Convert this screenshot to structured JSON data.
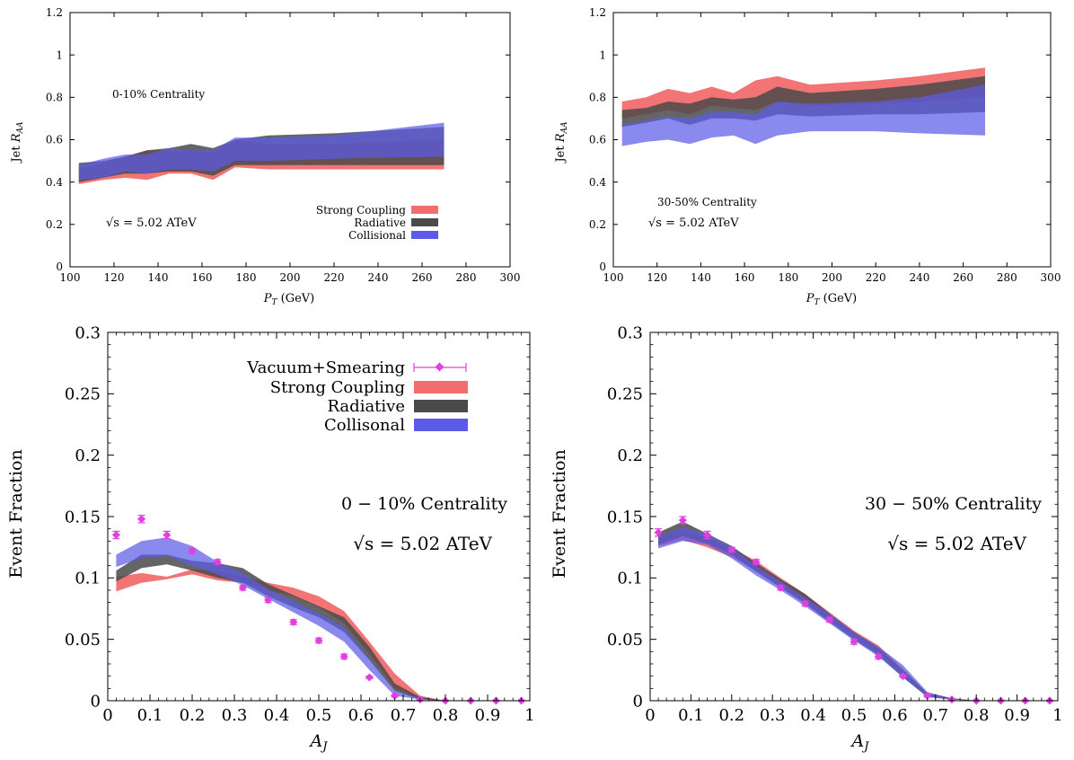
{
  "colors": {
    "strong": "#f26d6d",
    "radiative": "#4a4a4a",
    "collisional": "#5b5be8",
    "vacuum": "#e040e0"
  },
  "chart_data": [
    {
      "id": "raa_central",
      "type": "area",
      "xlabel": "P_T (GeV)",
      "ylabel": "Jet R_AA",
      "xlim": [
        100,
        300
      ],
      "ylim": [
        0,
        1.2
      ],
      "xticks": [
        "100",
        "120",
        "140",
        "160",
        "180",
        "200",
        "220",
        "240",
        "260",
        "280",
        "300"
      ],
      "yticks": [
        "0",
        "0.2",
        "0.4",
        "0.6",
        "0.8",
        "1",
        "1.2"
      ],
      "annotations": [
        "0-10% Centrality",
        "√s = 5.02 ATeV"
      ],
      "legend": [
        "Strong Coupling",
        "Radiative",
        "Collisional"
      ],
      "legend_position": "bottom-right",
      "x": [
        104,
        115,
        125,
        135,
        145,
        155,
        165,
        175,
        190,
        220,
        270
      ],
      "series": [
        {
          "name": "Strong Coupling",
          "lower": [
            0.39,
            0.41,
            0.42,
            0.41,
            0.44,
            0.44,
            0.41,
            0.47,
            0.46,
            0.46,
            0.46
          ],
          "upper": [
            0.46,
            0.49,
            0.52,
            0.55,
            0.55,
            0.55,
            0.54,
            0.6,
            0.58,
            0.58,
            0.6
          ]
        },
        {
          "name": "Radiative",
          "lower": [
            0.4,
            0.42,
            0.44,
            0.44,
            0.45,
            0.45,
            0.43,
            0.48,
            0.48,
            0.48,
            0.48
          ],
          "upper": [
            0.49,
            0.5,
            0.52,
            0.55,
            0.56,
            0.58,
            0.56,
            0.6,
            0.62,
            0.63,
            0.66
          ]
        },
        {
          "name": "Collisional",
          "lower": [
            0.41,
            0.42,
            0.45,
            0.44,
            0.46,
            0.46,
            0.45,
            0.5,
            0.5,
            0.51,
            0.52
          ],
          "upper": [
            0.48,
            0.51,
            0.53,
            0.53,
            0.56,
            0.55,
            0.55,
            0.61,
            0.61,
            0.62,
            0.68
          ]
        }
      ]
    },
    {
      "id": "raa_peripheral",
      "type": "area",
      "xlabel": "P_T (GeV)",
      "ylabel": "Jet R_AA",
      "xlim": [
        100,
        300
      ],
      "ylim": [
        0,
        1.2
      ],
      "xticks": [
        "100",
        "120",
        "140",
        "160",
        "180",
        "200",
        "220",
        "240",
        "260",
        "280",
        "300"
      ],
      "yticks": [
        "0",
        "0.2",
        "0.4",
        "0.6",
        "0.8",
        "1",
        "1.2"
      ],
      "annotations": [
        "30-50% Centrality",
        "√s = 5.02 ATeV"
      ],
      "x": [
        104,
        115,
        125,
        135,
        145,
        155,
        165,
        175,
        190,
        220,
        240,
        270
      ],
      "series": [
        {
          "name": "Strong Coupling",
          "lower": [
            0.7,
            0.72,
            0.74,
            0.72,
            0.76,
            0.75,
            0.74,
            0.78,
            0.76,
            0.77,
            0.78,
            0.8
          ],
          "upper": [
            0.78,
            0.8,
            0.84,
            0.82,
            0.85,
            0.82,
            0.88,
            0.9,
            0.86,
            0.88,
            0.9,
            0.94
          ]
        },
        {
          "name": "Radiative",
          "lower": [
            0.66,
            0.68,
            0.7,
            0.67,
            0.7,
            0.7,
            0.69,
            0.72,
            0.71,
            0.72,
            0.72,
            0.73
          ],
          "upper": [
            0.74,
            0.75,
            0.78,
            0.77,
            0.8,
            0.79,
            0.8,
            0.85,
            0.82,
            0.84,
            0.86,
            0.9
          ]
        },
        {
          "name": "Collisional",
          "lower": [
            0.57,
            0.59,
            0.6,
            0.58,
            0.61,
            0.62,
            0.58,
            0.62,
            0.64,
            0.64,
            0.63,
            0.62
          ],
          "upper": [
            0.67,
            0.69,
            0.71,
            0.7,
            0.73,
            0.73,
            0.72,
            0.78,
            0.77,
            0.78,
            0.8,
            0.86
          ]
        }
      ]
    },
    {
      "id": "aj_central",
      "type": "area",
      "xlabel": "A_J",
      "ylabel": "Event Fraction",
      "xlim": [
        0,
        1
      ],
      "ylim": [
        0,
        0.3
      ],
      "xticks": [
        "0",
        "0.1",
        "0.2",
        "0.3",
        "0.4",
        "0.5",
        "0.6",
        "0.7",
        "0.8",
        "0.9",
        "1"
      ],
      "yticks": [
        "0",
        "0.05",
        "0.1",
        "0.15",
        "0.2",
        "0.25",
        "0.3"
      ],
      "annotations": [
        "0 − 10% Centrality",
        "√s = 5.02 ATeV"
      ],
      "legend": [
        "Vacuum+Smearing",
        "Strong Coupling",
        "Radiative",
        "Collisonal"
      ],
      "legend_position": "top-right",
      "x": [
        0.02,
        0.08,
        0.14,
        0.2,
        0.26,
        0.32,
        0.38,
        0.44,
        0.5,
        0.56,
        0.62,
        0.68,
        0.74,
        0.8,
        0.86,
        0.92,
        0.98
      ],
      "series": [
        {
          "name": "Strong Coupling",
          "lower": [
            0.089,
            0.096,
            0.099,
            0.103,
            0.098,
            0.096,
            0.09,
            0.085,
            0.076,
            0.063,
            0.038,
            0.01,
            0.001,
            0,
            0,
            0,
            0
          ],
          "upper": [
            0.101,
            0.104,
            0.101,
            0.107,
            0.106,
            0.101,
            0.096,
            0.092,
            0.085,
            0.073,
            0.048,
            0.022,
            0.004,
            0,
            0,
            0,
            0
          ]
        },
        {
          "name": "Radiative",
          "lower": [
            0.097,
            0.108,
            0.111,
            0.106,
            0.1,
            0.096,
            0.085,
            0.076,
            0.068,
            0.056,
            0.033,
            0.008,
            0.001,
            0,
            0,
            0,
            0
          ],
          "upper": [
            0.106,
            0.119,
            0.119,
            0.114,
            0.112,
            0.108,
            0.095,
            0.086,
            0.077,
            0.068,
            0.044,
            0.014,
            0.003,
            0,
            0,
            0,
            0
          ]
        },
        {
          "name": "Collisonal",
          "lower": [
            0.109,
            0.116,
            0.118,
            0.11,
            0.103,
            0.094,
            0.083,
            0.072,
            0.061,
            0.048,
            0.025,
            0.004,
            0.001,
            0,
            0,
            0,
            0
          ],
          "upper": [
            0.119,
            0.13,
            0.133,
            0.126,
            0.113,
            0.104,
            0.091,
            0.081,
            0.071,
            0.06,
            0.034,
            0.008,
            0.002,
            0,
            0,
            0,
            0
          ]
        },
        {
          "name": "Vacuum+Smearing",
          "type": "points",
          "values": [
            0.135,
            0.148,
            0.135,
            0.122,
            0.113,
            0.092,
            0.082,
            0.064,
            0.049,
            0.036,
            0.019,
            0.004,
            0.001,
            0,
            0,
            0,
            0
          ],
          "err": [
            0.003,
            0.003,
            0.003,
            0.002,
            0.002,
            0.002,
            0.002,
            0.002,
            0.002,
            0.002,
            0.001,
            0.001,
            0.0005,
            0,
            0,
            0,
            0
          ]
        }
      ]
    },
    {
      "id": "aj_peripheral",
      "type": "area",
      "xlabel": "A_J",
      "ylabel": "Event Fraction",
      "xlim": [
        0,
        1
      ],
      "ylim": [
        0,
        0.3
      ],
      "xticks": [
        "0",
        "0.1",
        "0.2",
        "0.3",
        "0.4",
        "0.5",
        "0.6",
        "0.7",
        "0.8",
        "0.9",
        "1"
      ],
      "yticks": [
        "0",
        "0.05",
        "0.1",
        "0.15",
        "0.2",
        "0.25",
        "0.3"
      ],
      "annotations": [
        "30 − 50% Centrality",
        "√s = 5.02 ATeV"
      ],
      "x": [
        0.02,
        0.08,
        0.14,
        0.2,
        0.26,
        0.32,
        0.38,
        0.44,
        0.5,
        0.56,
        0.62,
        0.68,
        0.74,
        0.8,
        0.86,
        0.92,
        0.98
      ],
      "series": [
        {
          "name": "Strong Coupling",
          "lower": [
            0.126,
            0.131,
            0.125,
            0.117,
            0.106,
            0.093,
            0.08,
            0.066,
            0.052,
            0.039,
            0.021,
            0.004,
            0.001,
            0,
            0,
            0,
            0
          ],
          "upper": [
            0.134,
            0.14,
            0.133,
            0.124,
            0.114,
            0.1,
            0.087,
            0.072,
            0.057,
            0.045,
            0.026,
            0.006,
            0.002,
            0,
            0,
            0,
            0
          ]
        },
        {
          "name": "Radiative",
          "lower": [
            0.127,
            0.134,
            0.128,
            0.119,
            0.105,
            0.092,
            0.079,
            0.064,
            0.05,
            0.037,
            0.019,
            0.003,
            0.001,
            0,
            0,
            0,
            0
          ],
          "upper": [
            0.137,
            0.146,
            0.136,
            0.126,
            0.112,
            0.099,
            0.087,
            0.071,
            0.056,
            0.043,
            0.025,
            0.006,
            0.002,
            0,
            0,
            0,
            0
          ]
        },
        {
          "name": "Collisonal",
          "lower": [
            0.124,
            0.13,
            0.127,
            0.116,
            0.102,
            0.09,
            0.077,
            0.063,
            0.049,
            0.036,
            0.019,
            0.003,
            0.001,
            0,
            0,
            0,
            0
          ],
          "upper": [
            0.134,
            0.141,
            0.136,
            0.125,
            0.11,
            0.097,
            0.084,
            0.071,
            0.056,
            0.044,
            0.029,
            0.007,
            0.002,
            0,
            0,
            0,
            0
          ]
        },
        {
          "name": "Vacuum+Smearing",
          "type": "points",
          "values": [
            0.137,
            0.147,
            0.135,
            0.123,
            0.113,
            0.092,
            0.079,
            0.066,
            0.048,
            0.036,
            0.02,
            0.004,
            0.001,
            0,
            0,
            0,
            0
          ],
          "err": [
            0.003,
            0.003,
            0.003,
            0.002,
            0.002,
            0.002,
            0.002,
            0.002,
            0.002,
            0.002,
            0.001,
            0.001,
            0.0005,
            0,
            0,
            0,
            0
          ]
        }
      ]
    }
  ]
}
